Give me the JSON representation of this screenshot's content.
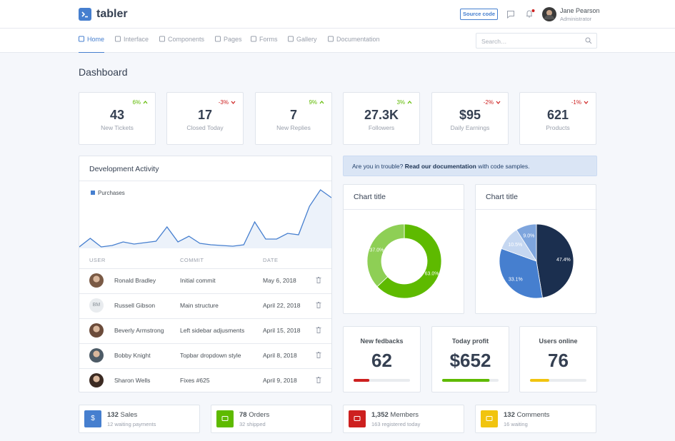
{
  "header": {
    "logo": "tabler",
    "source_code": "Source code",
    "user_name": "Jane Pearson",
    "user_role": "Administrator"
  },
  "nav": {
    "items": [
      "Home",
      "Interface",
      "Components",
      "Pages",
      "Forms",
      "Gallery",
      "Documentation"
    ],
    "active": 0,
    "search_placeholder": "Search…"
  },
  "page_title": "Dashboard",
  "stats": [
    {
      "change": "6%",
      "trend": "up",
      "value": "43",
      "label": "New Tickets"
    },
    {
      "change": "-3%",
      "trend": "down",
      "value": "17",
      "label": "Closed Today"
    },
    {
      "change": "9%",
      "trend": "up",
      "value": "7",
      "label": "New Replies"
    },
    {
      "change": "3%",
      "trend": "up",
      "value": "27.3K",
      "label": "Followers"
    },
    {
      "change": "-2%",
      "trend": "down",
      "value": "$95",
      "label": "Daily Earnings"
    },
    {
      "change": "-1%",
      "trend": "down",
      "value": "621",
      "label": "Products"
    }
  ],
  "development_activity": {
    "title": "Development Activity",
    "chart_data": {
      "type": "area",
      "series": [
        {
          "name": "Purchases",
          "color": "#467fcf",
          "values": [
            2,
            14,
            2,
            4,
            9,
            6,
            8,
            10,
            30,
            9,
            17,
            7,
            5,
            4,
            3,
            5,
            37,
            13,
            13,
            21,
            19,
            59,
            82,
            71
          ]
        }
      ]
    },
    "table": {
      "columns": [
        "USER",
        "COMMIT",
        "DATE"
      ],
      "rows": [
        {
          "user": "Ronald Bradley",
          "commit": "Initial commit",
          "date": "May 6, 2018"
        },
        {
          "user": "Russell Gibson",
          "initials": "BM",
          "commit": "Main structure",
          "date": "April 22, 2018"
        },
        {
          "user": "Beverly Armstrong",
          "commit": "Left sidebar adjusments",
          "date": "April 15, 2018"
        },
        {
          "user": "Bobby Knight",
          "commit": "Topbar dropdown style",
          "date": "April 8, 2018"
        },
        {
          "user": "Sharon Wells",
          "commit": "Fixes #625",
          "date": "April 9, 2018"
        }
      ]
    }
  },
  "alert": {
    "before": "Are you in trouble? ",
    "link": "Read our documentation",
    "after": " with code samples."
  },
  "charts": [
    {
      "title": "Chart title",
      "chart_data": {
        "type": "donut",
        "values": [
          63.0,
          37.0
        ],
        "value_labels": [
          "63.0%",
          "37.0%"
        ],
        "colors": [
          "#5eba00",
          "#8ecf55"
        ]
      }
    },
    {
      "title": "Chart title",
      "chart_data": {
        "type": "pie",
        "values": [
          47.4,
          33.1,
          10.5,
          9.0
        ],
        "value_labels": [
          "47.4%",
          "33.1%",
          "10.5%",
          "9.0%"
        ],
        "colors": [
          "#1b2f4f",
          "#467fcf",
          "#c5d7f1",
          "#7ea5dd"
        ]
      }
    }
  ],
  "progress_cards": [
    {
      "title": "New fedbacks",
      "value": "62",
      "progress": 28,
      "color": "#cd201f"
    },
    {
      "title": "Today profit",
      "value": "$652",
      "progress": 84,
      "color": "#5eba00"
    },
    {
      "title": "Users online",
      "value": "76",
      "progress": 34,
      "color": "#f1c40f"
    }
  ],
  "summary": [
    {
      "count": "132",
      "label": "Sales",
      "sub": "12 waiting payments",
      "color": "#467fcf",
      "icon": "$"
    },
    {
      "count": "78",
      "label": "Orders",
      "sub": "32 shipped",
      "color": "#5eba00"
    },
    {
      "count": "1,352",
      "label": "Members",
      "sub": "163 registered today",
      "color": "#cd201f"
    },
    {
      "count": "132",
      "label": "Comments",
      "sub": "16 waiting",
      "color": "#f1c40f"
    }
  ]
}
